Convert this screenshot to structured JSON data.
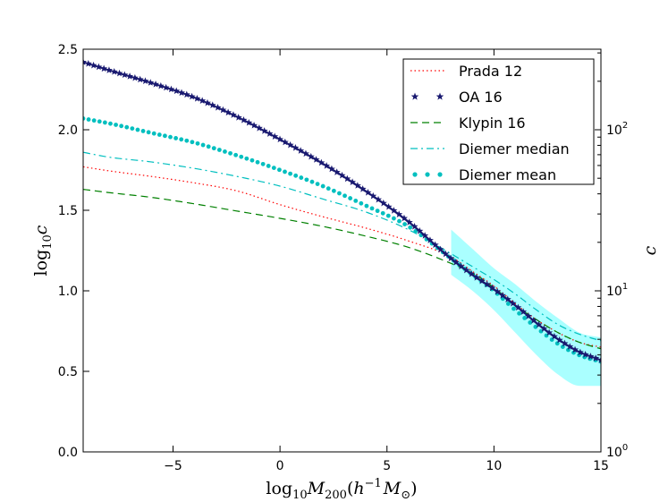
{
  "chart_data": {
    "type": "line",
    "xlabel": {
      "base": "log",
      "sub": "10",
      "var": "M",
      "var_sub": "200",
      "paren_open": "(",
      "h": "h",
      "h_sup": "−1",
      "m": "M",
      "m_sub": "⊙",
      "paren_close": ")"
    },
    "ylabel": {
      "base": "log",
      "sub": "10",
      "var": "c"
    },
    "ylabel_right": "c",
    "xlim": [
      -9.2,
      15
    ],
    "ylim": [
      0.0,
      2.5
    ],
    "x_ticks": [
      -5,
      0,
      5,
      10,
      15
    ],
    "x_tick_labels": [
      "−5",
      "0",
      "5",
      "10",
      "15"
    ],
    "y_ticks": [
      0.0,
      0.5,
      1.0,
      1.5,
      2.0,
      2.5
    ],
    "y_tick_labels": [
      "0.0",
      "0.5",
      "1.0",
      "1.5",
      "2.0",
      "2.5"
    ],
    "right_axis": {
      "scale": "log",
      "ticks": [
        {
          "value": 1,
          "base": "10",
          "exp": "0"
        },
        {
          "value": 10,
          "base": "10",
          "exp": "1"
        },
        {
          "value": 100,
          "base": "10",
          "exp": "2"
        }
      ]
    },
    "legend_position": "top-right",
    "series": [
      {
        "name": "Prada 12",
        "color": "#ff0000",
        "style": "dotted",
        "x": [
          -9.2,
          -8,
          -6,
          -4,
          -2,
          0,
          2,
          4,
          6,
          8,
          9,
          10,
          11,
          12,
          13,
          14,
          15
        ],
        "y": [
          1.77,
          1.745,
          1.71,
          1.67,
          1.62,
          1.535,
          1.46,
          1.39,
          1.31,
          1.21,
          1.12,
          1.03,
          0.92,
          0.82,
          0.74,
          0.68,
          0.65
        ]
      },
      {
        "name": "OA 16",
        "color": "#191970",
        "style": "stars",
        "x": [
          -9.2,
          -8,
          -6,
          -4,
          -2,
          0,
          2,
          4,
          6,
          8,
          9,
          10,
          11,
          12,
          13,
          14,
          15
        ],
        "y": [
          2.42,
          2.37,
          2.29,
          2.2,
          2.08,
          1.94,
          1.79,
          1.62,
          1.43,
          1.2,
          1.1,
          1.01,
          0.91,
          0.8,
          0.7,
          0.62,
          0.57
        ]
      },
      {
        "name": "Klypin 16",
        "color": "#008000",
        "style": "dashed",
        "x": [
          -9.2,
          -8,
          -6,
          -4,
          -2,
          0,
          2,
          4,
          6,
          8,
          9,
          10,
          11,
          12,
          13,
          14,
          15
        ],
        "y": [
          1.63,
          1.61,
          1.58,
          1.54,
          1.495,
          1.45,
          1.4,
          1.34,
          1.27,
          1.17,
          1.11,
          1.02,
          0.91,
          0.82,
          0.74,
          0.68,
          0.64
        ]
      },
      {
        "name": "Diemer median",
        "color": "#00bfbf",
        "style": "dashdot",
        "x": [
          -9.2,
          -8,
          -6,
          -4,
          -2,
          0,
          2,
          4,
          6,
          8,
          9,
          10,
          11,
          12,
          13,
          14,
          15
        ],
        "y": [
          1.86,
          1.83,
          1.8,
          1.76,
          1.71,
          1.65,
          1.57,
          1.49,
          1.38,
          1.23,
          1.15,
          1.07,
          0.98,
          0.88,
          0.79,
          0.73,
          0.69
        ]
      },
      {
        "name": "Diemer mean",
        "color": "#00bfbf",
        "style": "dots",
        "x": [
          -9.2,
          -8,
          -6,
          -4,
          -2,
          0,
          2,
          4,
          6,
          8,
          9,
          10,
          11,
          12,
          13,
          14,
          15
        ],
        "y": [
          2.07,
          2.04,
          1.98,
          1.92,
          1.84,
          1.75,
          1.65,
          1.53,
          1.4,
          1.2,
          1.1,
          1.0,
          0.88,
          0.77,
          0.67,
          0.6,
          0.56
        ]
      }
    ],
    "band": {
      "color": "#aaffff",
      "x": [
        8,
        9,
        10,
        11,
        12,
        13,
        14,
        15
      ],
      "y_upper": [
        1.38,
        1.26,
        1.14,
        1.04,
        0.93,
        0.83,
        0.74,
        0.71
      ],
      "y_lower": [
        1.1,
        1.0,
        0.88,
        0.74,
        0.6,
        0.48,
        0.41,
        0.41
      ]
    }
  }
}
